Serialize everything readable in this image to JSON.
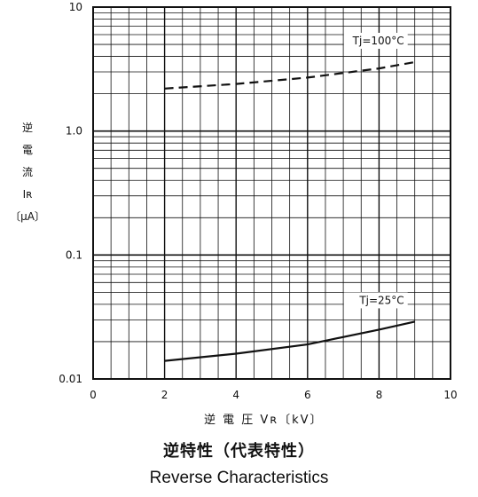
{
  "chart_data": {
    "type": "line",
    "title": "逆特性（代表特性）",
    "subtitle": "Reverse Characteristics",
    "xlabel": "逆 電 圧 Vʀ〔kV〕",
    "ylabel_lines": [
      "逆",
      "電",
      "流",
      "Iʀ",
      "〔μA〕"
    ],
    "x_scale": "linear",
    "y_scale": "log",
    "xlim": [
      0,
      10
    ],
    "ylim": [
      0.01,
      10
    ],
    "x_ticks": [
      {
        "value": 0,
        "label": "0"
      },
      {
        "value": 2,
        "label": "2"
      },
      {
        "value": 4,
        "label": "4"
      },
      {
        "value": 6,
        "label": "6"
      },
      {
        "value": 8,
        "label": "8"
      },
      {
        "value": 10,
        "label": "10"
      }
    ],
    "y_ticks": [
      {
        "value": 0.01,
        "label": "0.01"
      },
      {
        "value": 0.1,
        "label": "0.1"
      },
      {
        "value": 1,
        "label": "1.0"
      },
      {
        "value": 10,
        "label": "10"
      }
    ],
    "grid": true,
    "series": [
      {
        "name": "Tj=100°C",
        "style": "dashed",
        "x": [
          2,
          4,
          6,
          8,
          9
        ],
        "y": [
          2.2,
          2.4,
          2.7,
          3.2,
          3.6
        ]
      },
      {
        "name": "Tj=25°C",
        "style": "solid",
        "x": [
          2,
          4,
          6,
          8,
          9
        ],
        "y": [
          0.014,
          0.016,
          0.019,
          0.025,
          0.029
        ]
      }
    ],
    "colors": {
      "ink": "#111111",
      "background": "#ffffff"
    }
  }
}
